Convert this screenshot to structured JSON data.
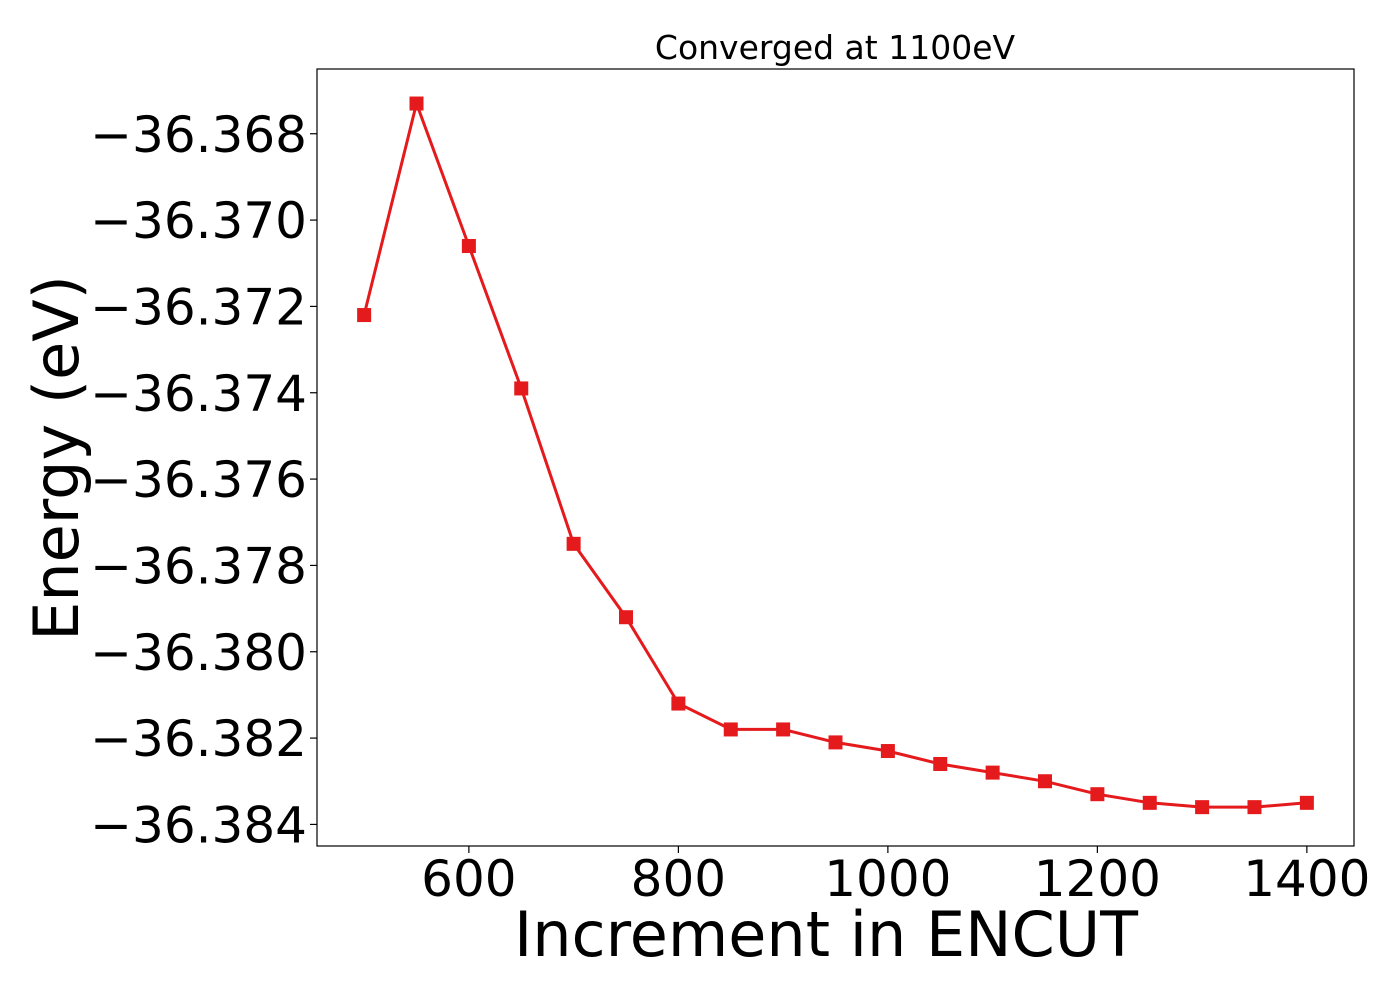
{
  "chart_data": {
    "type": "line",
    "title": "Converged at 1100eV",
    "xlabel": "Increment in ENCUT",
    "ylabel": "Energy (eV)",
    "xlim": [
      455,
      1445
    ],
    "ylim": [
      -36.3845,
      -36.3665
    ],
    "xticks": [
      600,
      800,
      1000,
      1200,
      1400
    ],
    "xtick_labels": [
      "600",
      "800",
      "1000",
      "1200",
      "1400"
    ],
    "yticks": [
      -36.368,
      -36.37,
      -36.372,
      -36.374,
      -36.376,
      -36.378,
      -36.38,
      -36.382,
      -36.384
    ],
    "ytick_labels": [
      "−36.368",
      "−36.370",
      "−36.372",
      "−36.374",
      "−36.376",
      "−36.378",
      "−36.380",
      "−36.382",
      "−36.384"
    ],
    "grid": false,
    "series": [
      {
        "color": "#e41a1c",
        "marker": "square",
        "x": [
          500,
          550,
          600,
          650,
          700,
          750,
          800,
          850,
          900,
          950,
          1000,
          1050,
          1100,
          1150,
          1200,
          1250,
          1300,
          1350,
          1400
        ],
        "y": [
          -36.3722,
          -36.3673,
          -36.3706,
          -36.3739,
          -36.3775,
          -36.3792,
          -36.3812,
          -36.3818,
          -36.3818,
          -36.3821,
          -36.3823,
          -36.3826,
          -36.3828,
          -36.383,
          -36.3833,
          -36.3835,
          -36.3836,
          -36.3836,
          -36.3835
        ]
      }
    ]
  }
}
